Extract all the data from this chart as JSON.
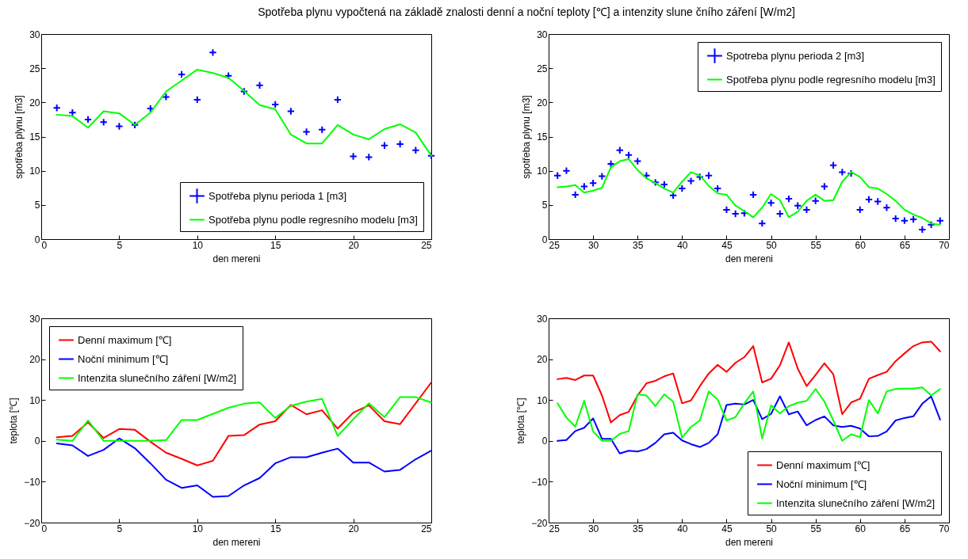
{
  "chart_data": [
    {
      "type": "line",
      "title": "Spotřeba plynu vypočtená na základě znalosti denní a noční teploty [℃] a intenzity slune čního záření [W/m2]",
      "xlabel": "den mereni",
      "ylabel": "spotřeba plynu [m3]",
      "xlim": [
        0,
        25
      ],
      "xticks": [
        0,
        5,
        10,
        15,
        20,
        25
      ],
      "ylim": [
        0,
        30
      ],
      "yticks": [
        0,
        5,
        10,
        15,
        20,
        25,
        30
      ],
      "legend": "bottom right",
      "x": [
        1,
        2,
        3,
        4,
        5,
        6,
        7,
        8,
        9,
        10,
        11,
        12,
        13,
        14,
        15,
        16,
        17,
        18,
        19,
        20,
        21,
        22,
        23,
        24,
        25
      ],
      "series": [
        {
          "name": "Spotřeba plynu perioda 1 [m3]",
          "type": "scatter",
          "marker": "cross",
          "color": "#0000ff",
          "values": [
            19.2,
            18.5,
            17.5,
            17.1,
            16.5,
            16.7,
            19.1,
            20.8,
            24.1,
            20.4,
            27.3,
            23.9,
            21.6,
            22.5,
            19.7,
            18.7,
            15.7,
            16.0,
            20.4,
            12.1,
            12.0,
            13.7,
            13.9,
            13.0,
            12.2
          ]
        },
        {
          "name": "Spotřeba plynu podle regresního modelu [m3]",
          "type": "line",
          "color": "#00ff00",
          "values": [
            18.2,
            18.0,
            16.3,
            18.7,
            18.4,
            16.7,
            18.5,
            21.6,
            23.2,
            24.8,
            24.3,
            23.6,
            21.7,
            19.6,
            19.0,
            15.3,
            14.0,
            14.0,
            16.7,
            15.3,
            14.6,
            16.1,
            16.8,
            15.6,
            12.2
          ]
        }
      ]
    },
    {
      "type": "line",
      "xlabel": "den mereni",
      "ylabel": "spotřeba plynu [m3]",
      "xlim": [
        25,
        70
      ],
      "xticks": [
        25,
        30,
        35,
        40,
        45,
        50,
        55,
        60,
        65,
        70
      ],
      "ylim": [
        0,
        30
      ],
      "yticks": [
        0,
        5,
        10,
        15,
        20,
        25,
        30
      ],
      "legend": "top right",
      "x": [
        26,
        27,
        28,
        29,
        30,
        31,
        32,
        33,
        34,
        35,
        36,
        37,
        38,
        39,
        40,
        41,
        42,
        43,
        44,
        45,
        46,
        47,
        48,
        49,
        50,
        51,
        52,
        53,
        54,
        55,
        56,
        57,
        58,
        59,
        60,
        61,
        62,
        63,
        64,
        65,
        66,
        67,
        68,
        69
      ],
      "series": [
        {
          "name": "Spotreba plynu perioda 2 [m3]",
          "type": "scatter",
          "marker": "cross",
          "color": "#0000ff",
          "values": [
            9.3,
            10.0,
            6.5,
            7.7,
            8.2,
            9.2,
            11.0,
            13.0,
            12.3,
            11.4,
            9.3,
            8.3,
            8.0,
            6.4,
            7.4,
            8.5,
            9.1,
            9.3,
            7.4,
            4.3,
            3.7,
            3.8,
            6.5,
            2.3,
            5.3,
            3.7,
            5.9,
            4.9,
            4.3,
            5.6,
            7.7,
            10.8,
            9.8,
            9.6,
            4.3,
            5.8,
            5.5,
            4.6,
            3.0,
            2.7,
            2.9,
            1.4,
            2.1,
            2.7
          ]
        },
        {
          "name": "Spotřeba plynu podle regresního modelu [m3]",
          "type": "line",
          "color": "#00ff00",
          "values": [
            7.6,
            7.7,
            7.9,
            6.8,
            7.1,
            7.5,
            10.5,
            11.4,
            11.7,
            10.1,
            8.9,
            8.2,
            7.4,
            6.8,
            8.4,
            9.8,
            9.3,
            7.8,
            6.7,
            6.5,
            4.9,
            4.1,
            3.2,
            4.6,
            6.6,
            5.7,
            3.2,
            4.0,
            5.6,
            6.5,
            5.6,
            5.7,
            8.4,
            9.8,
            9.1,
            7.6,
            7.4,
            6.6,
            5.6,
            4.3,
            3.6,
            3.1,
            2.3,
            2.1
          ]
        }
      ]
    },
    {
      "type": "line",
      "xlabel": "den mereni",
      "ylabel": "teplota [℃]",
      "xlim": [
        0,
        25
      ],
      "xticks": [
        0,
        5,
        10,
        15,
        20,
        25
      ],
      "ylim": [
        -20,
        30
      ],
      "yticks": [
        -20,
        -10,
        0,
        10,
        20,
        30
      ],
      "legend": "top left",
      "x": [
        1,
        2,
        3,
        4,
        5,
        6,
        7,
        8,
        9,
        10,
        11,
        12,
        13,
        14,
        15,
        16,
        17,
        18,
        19,
        20,
        21,
        22,
        23,
        24,
        25
      ],
      "series": [
        {
          "name": "Denní maximum [℃]",
          "color": "#ff0000",
          "values": [
            0.9,
            1.2,
            4.5,
            0.7,
            2.9,
            2.7,
            -0.2,
            -2.9,
            -4.4,
            -6.0,
            -4.9,
            1.2,
            1.4,
            4.0,
            4.8,
            8.8,
            6.5,
            7.5,
            3.0,
            6.9,
            8.7,
            4.8,
            4.1,
            9.2,
            14.3
          ]
        },
        {
          "name": "Noční minimum [℃]",
          "color": "#0000ff",
          "values": [
            -0.6,
            -1.1,
            -3.7,
            -2.2,
            0.6,
            -1.8,
            -5.5,
            -9.5,
            -11.5,
            -10.9,
            -13.7,
            -13.5,
            -10.9,
            -9.1,
            -5.5,
            -4.0,
            -4.0,
            -2.9,
            -1.9,
            -5.3,
            -5.3,
            -7.5,
            -7.1,
            -4.5,
            -2.4
          ]
        },
        {
          "name": "Intenzita slunečního záření [W/m2]",
          "color": "#00ff00",
          "values": [
            0.3,
            0,
            5.0,
            0,
            0,
            0,
            0,
            0.2,
            5.1,
            5.1,
            6.6,
            8.1,
            9.1,
            9.4,
            5.6,
            8.6,
            9.6,
            10.3,
            1.2,
            5.3,
            9.2,
            5.8,
            10.7,
            10.7,
            9.4
          ]
        }
      ]
    },
    {
      "type": "line",
      "xlabel": "den mereni",
      "ylabel": "teplota [℃]",
      "xlim": [
        25,
        70
      ],
      "xticks": [
        25,
        30,
        35,
        40,
        45,
        50,
        55,
        60,
        65,
        70
      ],
      "ylim": [
        -20,
        30
      ],
      "yticks": [
        -20,
        -10,
        0,
        10,
        20,
        30
      ],
      "legend": "bottom right",
      "x": [
        26,
        27,
        28,
        29,
        30,
        31,
        32,
        33,
        34,
        35,
        36,
        37,
        38,
        39,
        40,
        41,
        42,
        43,
        44,
        45,
        46,
        47,
        48,
        49,
        50,
        51,
        52,
        53,
        54,
        55,
        56,
        57,
        58,
        59,
        60,
        61,
        62,
        63,
        64,
        65,
        66,
        67,
        68,
        69
      ],
      "series": [
        {
          "name": "Denní maximum [℃]",
          "color": "#ff0000",
          "values": [
            15.1,
            15.4,
            14.9,
            16.0,
            16.0,
            11.1,
            4.5,
            6.3,
            7.1,
            11.1,
            14.1,
            14.7,
            15.8,
            16.5,
            9.2,
            9.9,
            13.4,
            16.5,
            18.6,
            16.9,
            19.1,
            20.5,
            23.2,
            14.3,
            15.2,
            18.5,
            24.1,
            17.7,
            13.4,
            16.1,
            19.0,
            16.3,
            6.5,
            9.4,
            10.3,
            15.2,
            16.1,
            16.9,
            19.5,
            21.4,
            23.2,
            24.1,
            24.3,
            21.9
          ]
        },
        {
          "name": "Noční minimum [℃]",
          "color": "#0000ff",
          "values": [
            0,
            0.2,
            2.4,
            3.2,
            5.5,
            0.5,
            0.5,
            -3.1,
            -2.4,
            -2.6,
            -2.0,
            -0.5,
            1.6,
            2.0,
            0.1,
            -0.8,
            -1.5,
            -0.5,
            1.6,
            8.8,
            9.1,
            8.9,
            10.0,
            5.3,
            6.6,
            10.9,
            6.5,
            7.2,
            3.8,
            5.1,
            6.0,
            3.8,
            3.4,
            3.7,
            3.0,
            1.1,
            1.2,
            2.3,
            5.0,
            5.6,
            6.0,
            9.1,
            10.9,
            5.2
          ]
        },
        {
          "name": "Intenzita slunečního záření [W/m2]",
          "color": "#00ff00",
          "values": [
            9.2,
            5.7,
            3.5,
            9.8,
            2.3,
            0,
            0,
            1.7,
            2.4,
            11.4,
            11.1,
            8.5,
            11.4,
            9.6,
            0.8,
            3.4,
            5.0,
            12.1,
            10.1,
            5.0,
            5.8,
            9.2,
            12.1,
            0.6,
            8.7,
            6.7,
            8.5,
            9.3,
            9.8,
            12.7,
            9.6,
            5.0,
            0,
            1.6,
            0.9,
            10.0,
            6.7,
            12.1,
            12.7,
            12.8,
            12.8,
            13.1,
            11.1,
            12.7
          ]
        }
      ]
    }
  ]
}
